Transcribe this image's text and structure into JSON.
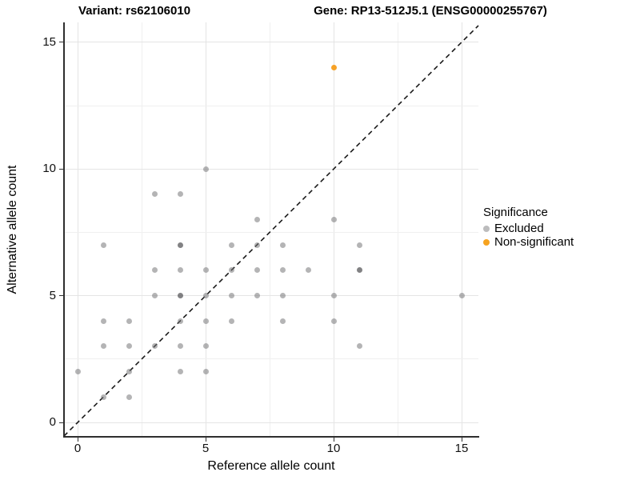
{
  "colors": {
    "excluded_hex": "#bcbcbd",
    "excluded_overlap_hex": "#9e9ea0",
    "non_significant_hex": "#f6a320",
    "identity_line": "#1a1a1a",
    "axis_line": "#2e2e2e"
  },
  "chart_data": {
    "type": "scatter",
    "title_left": "Variant: rs62106010",
    "title_right": "Gene: RP13-512J5.1 (ENSG00000255767)",
    "xlabel": "Reference allele count",
    "ylabel": "Alternative allele count",
    "xlim": [
      0,
      15
    ],
    "ylim": [
      0,
      15
    ],
    "x_ticks": [
      0,
      5,
      10,
      15
    ],
    "y_ticks": [
      0,
      5,
      10,
      15
    ],
    "x_minor": [
      2.5,
      7.5,
      12.5
    ],
    "y_minor": [
      2.5,
      7.5,
      12.5
    ],
    "grid": true,
    "legend_title": "Significance",
    "legend_position": "right",
    "identity_line": {
      "style": "dashed",
      "slope": 1,
      "intercept": 0
    },
    "series": [
      {
        "name": "Excluded",
        "color": "rgba(119,119,121,0.55)",
        "color_overlap": "rgba(95,95,97,0.78)",
        "points": [
          [
            0,
            2
          ],
          [
            1,
            1
          ],
          [
            1,
            3
          ],
          [
            1,
            4
          ],
          [
            1,
            7
          ],
          [
            2,
            1
          ],
          [
            2,
            2
          ],
          [
            2,
            3
          ],
          [
            2,
            4
          ],
          [
            3,
            3
          ],
          [
            3,
            5
          ],
          [
            3,
            6
          ],
          [
            3,
            9
          ],
          [
            4,
            2
          ],
          [
            4,
            3
          ],
          [
            4,
            4
          ],
          [
            4,
            5,
            1
          ],
          [
            4,
            6
          ],
          [
            4,
            7,
            1
          ],
          [
            4,
            9
          ],
          [
            5,
            2
          ],
          [
            5,
            3
          ],
          [
            5,
            4
          ],
          [
            5,
            5
          ],
          [
            5,
            6
          ],
          [
            5,
            10
          ],
          [
            6,
            4
          ],
          [
            6,
            5
          ],
          [
            6,
            6
          ],
          [
            6,
            7
          ],
          [
            7,
            5
          ],
          [
            7,
            6
          ],
          [
            7,
            7
          ],
          [
            7,
            8
          ],
          [
            8,
            4
          ],
          [
            8,
            5
          ],
          [
            8,
            6
          ],
          [
            8,
            7
          ],
          [
            9,
            6
          ],
          [
            10,
            4
          ],
          [
            10,
            5
          ],
          [
            10,
            8
          ],
          [
            11,
            3
          ],
          [
            11,
            6,
            1
          ],
          [
            11,
            7
          ],
          [
            15,
            5
          ]
        ]
      },
      {
        "name": "Non-significant",
        "color": "rgba(246,154,21,0.92)",
        "points": [
          [
            10,
            14
          ]
        ]
      }
    ]
  }
}
